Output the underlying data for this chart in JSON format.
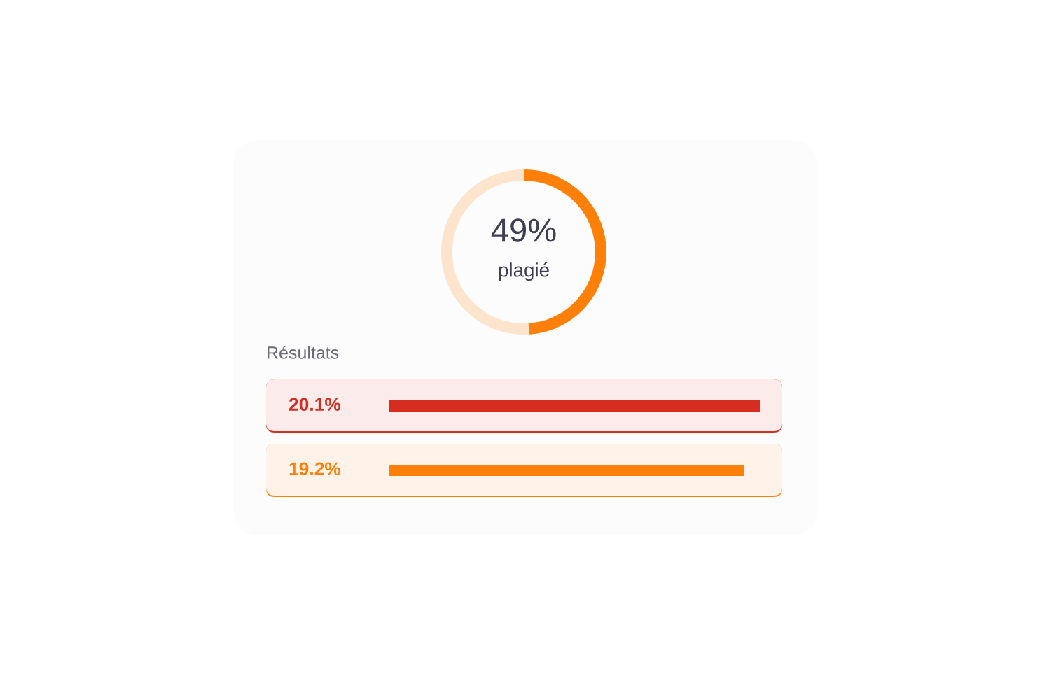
{
  "chart_data": [
    {
      "type": "donut",
      "categories": [
        "plagié",
        null
      ],
      "values": [
        49,
        51
      ],
      "colors": [
        "#ff7f07",
        "#fde4cc"
      ],
      "value_labels": [
        "49%",
        null
      ]
    },
    {
      "type": "bar",
      "title": "Résultats",
      "orientation": "horizontal",
      "categories": [
        null,
        null
      ],
      "values": [
        20.1,
        19.2
      ],
      "colors": [
        "#d62d20",
        "#ff7f07"
      ],
      "value_labels": [
        "20.1%",
        "19.2%"
      ]
    }
  ]
}
